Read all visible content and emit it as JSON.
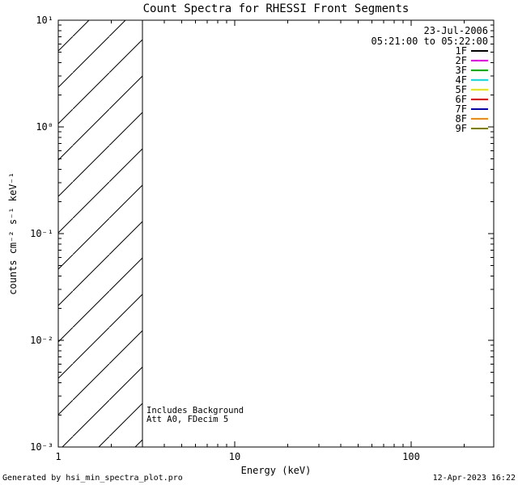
{
  "title": "Count Spectra for RHESSI Front Segments",
  "axes": {
    "xlabel": "Energy (keV)",
    "ylabel": "counts cm⁻² s⁻¹ keV⁻¹",
    "x_tick_labels": [
      "1",
      "10",
      "100"
    ],
    "y_tick_labels": [
      "10¹",
      "10⁰",
      "10⁻¹",
      "10⁻²",
      "10⁻³"
    ]
  },
  "legend": {
    "date": "23-Jul-2006",
    "time_range": "05:21:00 to 05:22:00",
    "entries": [
      {
        "label": "1F",
        "color": "#000000"
      },
      {
        "label": "2F",
        "color": "#ff00ff"
      },
      {
        "label": "3F",
        "color": "#00bb00"
      },
      {
        "label": "4F",
        "color": "#00e5e5"
      },
      {
        "label": "5F",
        "color": "#e8e800"
      },
      {
        "label": "6F",
        "color": "#ff0000"
      },
      {
        "label": "7F",
        "color": "#0000cc"
      },
      {
        "label": "8F",
        "color": "#ff8800"
      },
      {
        "label": "9F",
        "color": "#808000"
      }
    ]
  },
  "annotations": {
    "line1": "Includes Background",
    "line2": "Att A0, FDecim 5"
  },
  "footer": {
    "left": "Generated by hsi_min_spectra_plot.pro",
    "right": "12-Apr-2023 16:22"
  },
  "chart_data": {
    "type": "line",
    "title": "Count Spectra for RHESSI Front Segments",
    "xlabel": "Energy (keV)",
    "ylabel": "counts cm^-2 s^-1 keV^-1",
    "x_scale": "log",
    "y_scale": "log",
    "xlim": [
      1,
      294
    ],
    "ylim": [
      0.001,
      10
    ],
    "x_ticks": [
      1,
      10,
      100
    ],
    "y_ticks": [
      0.001,
      0.01,
      0.1,
      1,
      10
    ],
    "grid": false,
    "legend_position": "top-right",
    "time_interval": "23-Jul-2006 05:21:00 to 05:22:00",
    "series": [
      {
        "name": "1F",
        "color": "#000000",
        "x": [],
        "y": []
      },
      {
        "name": "2F",
        "color": "#ff00ff",
        "x": [],
        "y": []
      },
      {
        "name": "3F",
        "color": "#00bb00",
        "x": [],
        "y": []
      },
      {
        "name": "4F",
        "color": "#00e5e5",
        "x": [],
        "y": []
      },
      {
        "name": "5F",
        "color": "#e8e800",
        "x": [],
        "y": []
      },
      {
        "name": "6F",
        "color": "#ff0000",
        "x": [],
        "y": []
      },
      {
        "name": "7F",
        "color": "#0000cc",
        "x": [],
        "y": []
      },
      {
        "name": "8F",
        "color": "#ff8800",
        "x": [],
        "y": []
      },
      {
        "name": "9F",
        "color": "#808000",
        "x": [],
        "y": []
      }
    ],
    "hatched_region": {
      "x_range": [
        1,
        3
      ],
      "y_range": [
        0.001,
        10
      ],
      "style": "diagonal-hatch"
    },
    "annotations": [
      "Includes Background",
      "Att A0, FDecim 5"
    ],
    "note": "Plot area is empty except for the diagonally hatched low-energy band from 1 to 3 keV; no spectra curves are drawn."
  }
}
